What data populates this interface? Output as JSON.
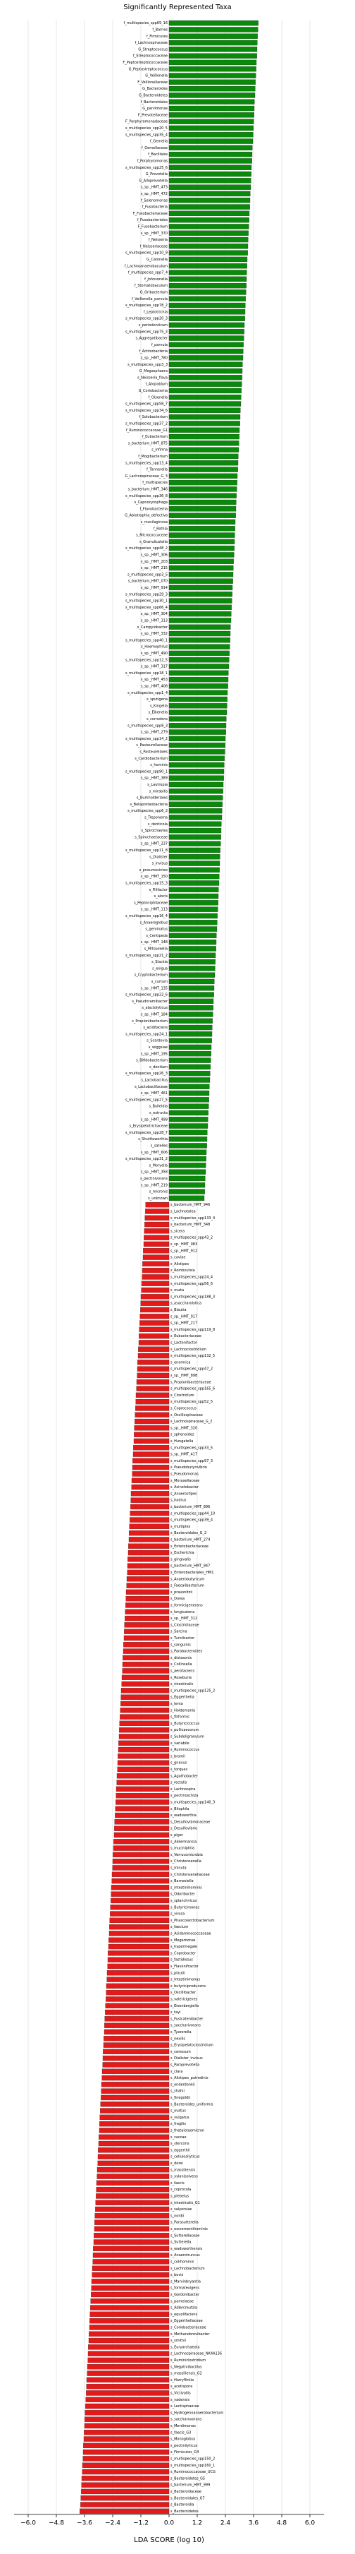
{
  "chart_data": {
    "type": "hbar",
    "title": "Significantly Represented Taxa",
    "xlabel": "LDA SCORE (log 10)",
    "xlim": [
      -6.6,
      6.6
    ],
    "xticks": [
      {
        "value": -6,
        "label": "−6.0"
      },
      {
        "value": -4.8,
        "label": "−4.8"
      },
      {
        "value": -3.6,
        "label": "−3.6"
      },
      {
        "value": -2.4,
        "label": "−2.4"
      },
      {
        "value": -1.2,
        "label": "−1.2"
      },
      {
        "value": 0,
        "label": "0.0"
      },
      1.2,
      2.4,
      3.6,
      4.8,
      {
        "value": 6,
        "label": "6.0"
      }
    ],
    "grid": true,
    "color_positive": "#0a8a0a",
    "color_negative": "#e41a1a",
    "categories": [
      "f_multispecies_spp69_16",
      "f_Barnes",
      "f_Firmicutes",
      "f_Lachnospiraceae",
      "G_Streptococcus",
      "f_Streptococcaceae",
      "F_Peptostreptococcaceae",
      "G_Peptostreptococcus",
      "G_Veillonella",
      "F_Veillonellaceae",
      "G_Bacteroides",
      "G_Bacteroidetes",
      "f_Bacteroidales",
      "G_parvimonas",
      "F_Prevotellaceae",
      "F_Porphyromonadaceae",
      "s_multispecies_spp20_5",
      "s_multispecies_spp35_4",
      "f_Gemella",
      "f_Gemellaceae",
      "f_Bacillales",
      "f_Porphyromonas",
      "s_multispecies_spp25_6",
      "G_Prevotella",
      "G_Alloprevotella",
      "s_sp._HMT_473",
      "s_sp._HMT_472",
      "f_Selenomonas",
      "f_Fusobacteria",
      "F_Fusobacteriaceae",
      "f_Fusobacteriales",
      "F_Fusobacterium",
      "s_sp._HMT_370",
      "f_Neisseria",
      "f_Neisseriaceae",
      "s_multispecies_spp10_9",
      "G_Catonella",
      "f_Lachnoanaerobaculum",
      "f_multispecies_spp7_4",
      "f_Johnsonella",
      "f_Stomatobaculum",
      "G_Oribacterium",
      "f_Veillonella_parvula",
      "s_multispecies_spp78_2",
      "f_Leptotrichia",
      "s_multispecies_spp20_3",
      "s_periodonticum",
      "s_multispecies_spp75_3",
      "s_Aggregatibacter",
      "f_parvula",
      "f_Actinobacteria",
      "s_sp._HMT_780",
      "s_multispecies_spp3_3",
      "G_Megasphaera",
      "s_Neisseria_flava",
      "f_Atopobium",
      "G_Coriobacteriia",
      "f_Olsenella",
      "s_multispecies_spp58_7",
      "s_multispecies_spp34_6",
      "f_Solobacterium",
      "s_multispecies_spp37_2",
      "f_Ruminococcaceae_G1",
      "f_Eubacterium",
      "s_bacterium_HMT_875",
      "s_infirma",
      "f_Mogibacterium",
      "s_multispecies_spp13_4",
      "f_Tannerella",
      "G_Lachnospiraceae_G_3",
      "f_multispecies",
      "s_bacterium_HMT_346",
      "s_multispecies_spp36_8",
      "s_Capnocytophaga",
      "f_Flavobacteriia",
      "G_Abiotrophia_defectiva",
      "s_mucilaginosa",
      "f_Rothia",
      "s_Micrococcaceae",
      "s_Granulicatella",
      "s_multispecies_spp48_2",
      "s_sp._HMT_306",
      "s_sp._HMT_203",
      "s_sp._HMT_215",
      "s_multispecies_spp3_5",
      "s_bacterium_HMT_070",
      "s_sp._HMT_914",
      "s_multispecies_spp29_3",
      "s_multispecies_spp30_1",
      "s_multispecies_spp66_4",
      "s_sp._HMT_304",
      "s_sp._HMT_313",
      "s_Campylobacter",
      "s_sp._HMT_332",
      "s_multispecies_spp40_1",
      "s_Haemophilus",
      "s_sp._HMT_490",
      "s_multispecies_spp12_5",
      "s_sp._HMT_317",
      "s_multispecies_spp18_1",
      "s_sp._HMT_453",
      "s_sp._HMT_408",
      "s_multispecies_spp1_4",
      "s_sputigena",
      "s_Kingella",
      "s_Eikenella",
      "s_corrodens",
      "s_multispecies_spp8_3",
      "s_sp._HMT_279",
      "s_multispecies_spp14_2",
      "s_Pasteurellaceae",
      "s_Pasteurellales",
      "s_Cardiobacterium",
      "s_hominis",
      "s_multispecies_spp90_1",
      "s_sp._HMT_389",
      "s_Lautropia",
      "s_mirabilis",
      "s_Burkholderiales",
      "s_Betaproteobacteria",
      "s_multispecies_spp6_2",
      "s_Treponema",
      "s_denticola",
      "s_Spirochaetes",
      "s_Spirochaetaceae",
      "s_sp._HMT_237",
      "s_multispecies_spp11_8",
      "s_Dialister",
      "s_invisus",
      "s_pneumosintes",
      "s_sp._HMT_150",
      "s_multispecies_spp15_3",
      "s_Filifactor",
      "s_alocis",
      "s_Peptoniphilaceae",
      "s_sp._HMT_113",
      "s_multispecies_spp16_4",
      "s_Anaeroglobus",
      "s_geminatus",
      "s_Centipeda",
      "s_sp._HMT_148",
      "s_Mitsuokella",
      "s_multispecies_spp21_2",
      "s_Slackia",
      "s_exigua",
      "s_Cryptobacterium",
      "s_curtum",
      "s_sp._HMT_135",
      "s_multispecies_spp22_6",
      "s_Pseudoramibacter",
      "s_alactolyticus",
      "s_sp._HMT_184",
      "s_Propionibacterium",
      "s_acidifaciens",
      "s_multispecies_spp24_1",
      "s_Scardovia",
      "s_wiggsiae",
      "s_sp._HMT_195",
      "s_Bifidobacterium",
      "s_dentium",
      "s_multispecies_spp26_3",
      "s_Lactobacillus",
      "s_Lactobacillaceae",
      "s_sp._HMT_461",
      "s_multispecies_spp27_5",
      "s_Bulleidia",
      "s_extructa",
      "s_sp._HMT_499",
      "s_Erysipelotrichaceae",
      "s_multispecies_spp28_7",
      "s_Shuttleworthia",
      "s_satelles",
      "s_sp._HMT_606",
      "s_multispecies_spp31_2",
      "s_Moryella",
      "s_sp._HMT_358",
      "s_pectinivorans",
      "s_sp._HMT_219",
      "s_micronis",
      "s_unknown",
      "s_bacterium_HMT_946",
      "s_Lachnotalea",
      "s_multispecies_spp133_4",
      "s_bacterium_HMT_348",
      "s_sicera",
      "s_multispecies_spp43_2",
      "s_sp._HMT_083",
      "s_sp._HMT_912",
      "s_caviae",
      "s_Alistipes",
      "s_Romboutsia",
      "s_multispecies_spp24_4",
      "s_multispecies_spp56_6",
      "s_ovata",
      "s_multispecies_spp188_3",
      "s_asaccharolytica",
      "s_Blautia",
      "s_sp._HMT_017",
      "s_sp._HMT_217",
      "s_multispecies_spp119_8",
      "s_Eubacteriaceae",
      "s_Lactonifactor",
      "s_Lachnoclostridium",
      "s_multispecies_spp132_5",
      "s_enormica",
      "s_multispecies_spp47_2",
      "s_sp._HMT_898",
      "s_Propionibacteriaceae",
      "s_multispecies_spp165_6",
      "s_Clostridium",
      "s_multispecies_spp52_5",
      "s_Coprococcus",
      "s_Oscillospiraceae",
      "s_Lachnospiraceae_G_2",
      "s_sp._HMT_320",
      "s_sphenoides",
      "s_Hungatella",
      "s_multispecies_spp33_5",
      "s_sp._HMT_417",
      "s_multispecies_spp97_3",
      "s_Pseudobutyrivibrio",
      "s_Pseudomonas",
      "s_Moraxellaceae",
      "s_Acinetobacter",
      "s_Anaerostipes",
      "s_hadrus",
      "s_bacterium_HMT_896",
      "s_multispecies_spp44_10",
      "s_multispecies_spp39_4",
      "s_multiplex",
      "s_Bacteroidales_G_2",
      "s_bacterium_HMT_274",
      "s_Enterobacteriaceae",
      "s_Escherichia",
      "s_gingivalis",
      "s_bacterium_HMT_947",
      "s_Enterobacterales_HM1",
      "s_Anaerobutyricum",
      "s_Faecalibacterium",
      "s_prausnitzii",
      "s_Dorea",
      "s_formicigenerans",
      "s_longicatena",
      "s_sp._HMT_312",
      "s_Clostridiaceae",
      "s_Sarcina",
      "s_Turicibacter",
      "s_sanguinis",
      "s_Parabacteroides",
      "s_distasonis",
      "s_Collinsella",
      "s_aerofaciens",
      "s_Roseburia",
      "s_intestinalis",
      "s_multispecies_spp125_2",
      "s_Eggerthella",
      "s_lenta",
      "s_Holdemania",
      "s_filiformis",
      "s_Butyricicoccus",
      "s_pullicaecorum",
      "s_Subdoligranulum",
      "s_variabile",
      "s_Ruminococcus",
      "s_bromii",
      "s_gnavus",
      "s_torques",
      "s_Agathobacter",
      "s_rectalis",
      "s_Lachnospira",
      "s_pectinoschiza",
      "s_multispecies_spp140_3",
      "s_Bilophila",
      "s_wadsworthia",
      "s_Desulfovibrionaceae",
      "s_Desulfovibrio",
      "s_piger",
      "s_Akkermansia",
      "s_muciniphila",
      "s_Verrucomicrobia",
      "s_Christensenella",
      "s_minuta",
      "s_Christensenellaceae",
      "s_Barnesiella",
      "s_intestinihominis",
      "s_Odoribacter",
      "s_splanchnicus",
      "s_Butyricimonas",
      "s_virosa",
      "s_Phascolarctobacterium",
      "s_faecium",
      "s_Acidaminococcaceae",
      "s_Megamonas",
      "s_hypermegale",
      "s_Coprobacter",
      "s_fastidiosus",
      "s_Flavonifractor",
      "s_plautii",
      "s_Intestinimonas",
      "s_butyriciproducens",
      "s_Oscillibacter",
      "s_valericigenes",
      "s_Eisenbergiella",
      "s_tayi",
      "s_Fusicatenibacter",
      "s_saccharivorans",
      "s_Tyzzerella",
      "s_nexilis",
      "s_Erysipelatoclostridium",
      "s_ramosum",
      "s_Dialister_invisus",
      "s_Paraprevotella",
      "s_clara",
      "s_Alistipes_putredinis",
      "s_onderdonkii",
      "s_shahii",
      "s_finegoldii",
      "s_Bacteroides_uniformis",
      "s_ovatus",
      "s_vulgatus",
      "s_fragilis",
      "s_thetaiotaomicron",
      "s_caccae",
      "s_stercoris",
      "s_eggerthii",
      "s_cellulosilyticus",
      "s_dorei",
      "s_massiliensis",
      "s_xylanisolvens",
      "s_faecis",
      "s_coprocola",
      "s_plebeius",
      "s_intestinalis_G1",
      "s_salyersiae",
      "s_nordii",
      "s_Parasutterella",
      "s_excrementihominis",
      "s_Sutterellaceae",
      "s_Sutterella",
      "s_wadsworthensis",
      "s_Anaerotruncus",
      "s_colihominis",
      "s_Lachnobacterium",
      "s_bovis",
      "s_Marvinbryantia",
      "s_formatexigens",
      "s_Gordonibacter",
      "s_pamelaeae",
      "s_Adlercreutzia",
      "s_equolifaciens",
      "s_Eggerthellaceae",
      "s_Coriobacteriaceae",
      "s_Methanobrevibacter",
      "s_smithii",
      "s_Euryarchaeota",
      "s_Lachnospiraceae_NK4A136",
      "s_Ruminiclostridium",
      "s_Negativibacillus",
      "s_massiliensis_G2",
      "s_Harryflintia",
      "s_acetispora",
      "s_Victivallis",
      "s_vadensis",
      "s_Lentisphaerae",
      "s_Hydrogenoanaerobacterium",
      "s_saccharovorans",
      "s_Merdimonas",
      "s_faecis_G3",
      "s_Monoglobus",
      "s_pectinilyticus",
      "s_Firmicutes_G4",
      "s_multispecies_spp150_2",
      "s_multispecies_spp160_1",
      "s_Ruminococcaceae_UCG",
      "s_Bacteroidetes_G5",
      "s_bacterium_HMT_999",
      "s_Bacteroidaceae",
      "s_Bacteroidales_G7",
      "s_Bacteroidia",
      "s_Bacteroidetes"
    ],
    "values": [
      3.8,
      3.79,
      3.77,
      3.76,
      3.75,
      3.74,
      3.72,
      3.71,
      3.7,
      3.68,
      3.67,
      3.66,
      3.64,
      3.63,
      3.62,
      3.61,
      3.59,
      3.58,
      3.57,
      3.55,
      3.54,
      3.53,
      3.51,
      3.5,
      3.49,
      3.48,
      3.46,
      3.45,
      3.44,
      3.42,
      3.41,
      3.4,
      3.38,
      3.37,
      3.36,
      3.35,
      3.33,
      3.32,
      3.31,
      3.3,
      3.29,
      3.28,
      3.26,
      3.25,
      3.24,
      3.23,
      3.21,
      3.2,
      3.19,
      3.17,
      3.16,
      3.15,
      3.13,
      3.12,
      3.11,
      3.1,
      3.08,
      3.07,
      3.06,
      3.04,
      3.03,
      3.02,
      3.0,
      2.99,
      2.98,
      2.97,
      2.95,
      2.94,
      2.93,
      2.91,
      2.9,
      2.89,
      2.87,
      2.86,
      2.85,
      2.84,
      2.82,
      2.81,
      2.8,
      2.79,
      2.78,
      2.77,
      2.75,
      2.74,
      2.73,
      2.72,
      2.7,
      2.69,
      2.68,
      2.66,
      2.65,
      2.64,
      2.62,
      2.61,
      2.6,
      2.59,
      2.57,
      2.56,
      2.55,
      2.53,
      2.52,
      2.51,
      2.49,
      2.48,
      2.47,
      2.46,
      2.44,
      2.43,
      2.42,
      2.4,
      2.39,
      2.38,
      2.36,
      2.35,
      2.34,
      2.33,
      2.31,
      2.3,
      2.29,
      2.27,
      2.26,
      2.25,
      2.23,
      2.22,
      2.21,
      2.2,
      2.18,
      2.17,
      2.16,
      2.15,
      2.14,
      2.13,
      2.11,
      2.1,
      2.09,
      2.08,
      2.06,
      2.05,
      2.04,
      2.02,
      2.01,
      2.0,
      1.98,
      1.97,
      1.96,
      1.95,
      1.93,
      1.92,
      1.91,
      1.89,
      1.88,
      1.87,
      1.85,
      1.84,
      1.83,
      1.82,
      1.8,
      1.79,
      1.78,
      1.76,
      1.75,
      1.74,
      1.72,
      1.71,
      1.7,
      1.69,
      1.67,
      1.66,
      1.65,
      1.63,
      1.62,
      1.61,
      1.59,
      1.58,
      1.57,
      1.56,
      1.54,
      1.53,
      1.52,
      1.5,
      -1.0,
      -1.01,
      -1.03,
      -1.04,
      -1.06,
      -1.07,
      -1.08,
      -1.1,
      -1.11,
      -1.13,
      -1.14,
      -1.15,
      -1.17,
      -1.18,
      -1.2,
      -1.21,
      -1.22,
      -1.24,
      -1.25,
      -1.27,
      -1.28,
      -1.29,
      -1.31,
      -1.32,
      -1.34,
      -1.35,
      -1.36,
      -1.38,
      -1.39,
      -1.41,
      -1.42,
      -1.43,
      -1.45,
      -1.46,
      -1.48,
      -1.49,
      -1.5,
      -1.52,
      -1.53,
      -1.55,
      -1.56,
      -1.57,
      -1.59,
      -1.6,
      -1.62,
      -1.63,
      -1.64,
      -1.66,
      -1.67,
      -1.69,
      -1.7,
      -1.71,
      -1.73,
      -1.74,
      -1.76,
      -1.77,
      -1.78,
      -1.8,
      -1.81,
      -1.83,
      -1.84,
      -1.85,
      -1.87,
      -1.88,
      -1.9,
      -1.91,
      -1.92,
      -1.94,
      -1.95,
      -1.97,
      -1.98,
      -1.99,
      -2.01,
      -2.02,
      -2.04,
      -2.05,
      -2.06,
      -2.08,
      -2.09,
      -2.11,
      -2.12,
      -2.13,
      -2.15,
      -2.16,
      -2.18,
      -2.19,
      -2.2,
      -2.22,
      -2.23,
      -2.25,
      -2.26,
      -2.27,
      -2.29,
      -2.3,
      -2.32,
      -2.33,
      -2.34,
      -2.36,
      -2.37,
      -2.39,
      -2.4,
      -2.41,
      -2.43,
      -2.44,
      -2.46,
      -2.47,
      -2.48,
      -2.5,
      -2.51,
      -2.53,
      -2.54,
      -2.55,
      -2.57,
      -2.58,
      -2.6,
      -2.61,
      -2.62,
      -2.64,
      -2.65,
      -2.67,
      -2.68,
      -2.69,
      -2.71,
      -2.72,
      -2.74,
      -2.75,
      -2.76,
      -2.78,
      -2.79,
      -2.81,
      -2.82,
      -2.83,
      -2.85,
      -2.86,
      -2.88,
      -2.89,
      -2.9,
      -2.92,
      -2.93,
      -2.95,
      -2.96,
      -2.97,
      -2.99,
      -3.0,
      -3.02,
      -3.03,
      -3.04,
      -3.06,
      -3.07,
      -3.09,
      -3.1,
      -3.11,
      -3.13,
      -3.14,
      -3.16,
      -3.17,
      -3.18,
      -3.2,
      -3.21,
      -3.23,
      -3.24,
      -3.25,
      -3.27,
      -3.28,
      -3.3,
      -3.31,
      -3.32,
      -3.34,
      -3.35,
      -3.37,
      -3.38,
      -3.39,
      -3.41,
      -3.42,
      -3.44,
      -3.45,
      -3.46,
      -3.48,
      -3.49,
      -3.51,
      -3.52,
      -3.53,
      -3.55,
      -3.56,
      -3.58,
      -3.59,
      -3.6,
      -3.62,
      -3.63,
      -3.65,
      -3.66,
      -3.67,
      -3.69,
      -3.7,
      -3.72,
      -3.73,
      -3.74,
      -3.76,
      -3.77,
      -3.8
    ]
  }
}
